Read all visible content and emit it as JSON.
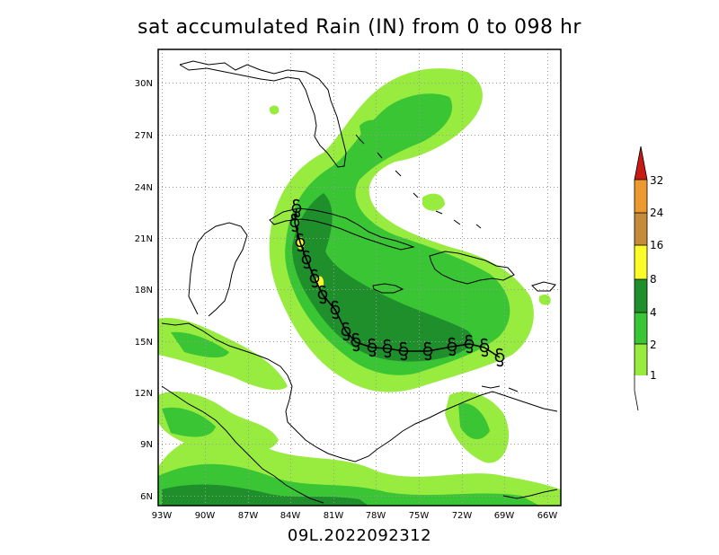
{
  "title": "sat accumulated Rain (IN) from 0 to 098 hr",
  "subtitle": "09L.2022092312",
  "map": {
    "lon_ticks": [
      "93W",
      "90W",
      "87W",
      "84W",
      "81W",
      "78W",
      "75W",
      "72W",
      "69W",
      "66W"
    ],
    "lat_ticks": [
      "6N",
      "9N",
      "12N",
      "15N",
      "18N",
      "21N",
      "24N",
      "27N",
      "30N"
    ],
    "colors": {
      "c1": "#98ec3f",
      "c2": "#3ac534",
      "c4": "#1f8f2b",
      "land": "#ffffff",
      "grid": "#9a9a9a",
      "coast": "#000000"
    },
    "track_symbol": "tropical-storm-symbol"
  },
  "colorbar": {
    "labels": [
      "1",
      "2",
      "4",
      "8",
      "16",
      "24",
      "32"
    ],
    "colors": [
      "#98ec3f",
      "#3ac534",
      "#1f8f2b",
      "#fbfb2a",
      "#c48c3a",
      "#ec9a30",
      "#c81a14"
    ]
  }
}
